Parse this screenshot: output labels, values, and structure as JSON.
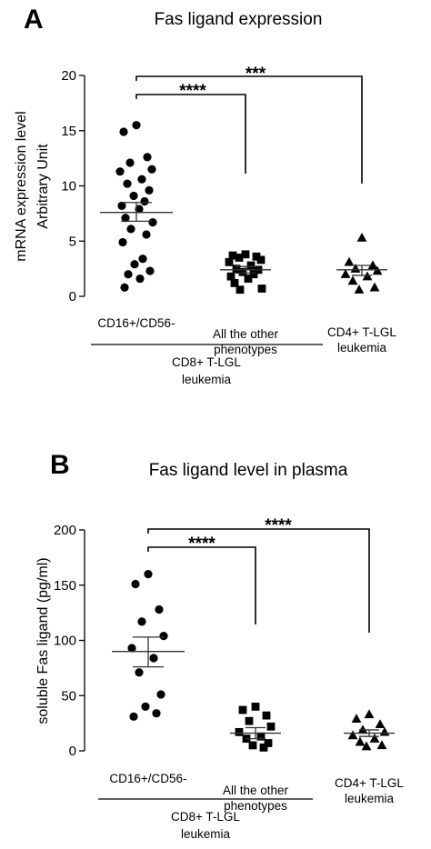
{
  "chart_data": [
    {
      "type": "scatter",
      "panel_label": "A",
      "title": "Fas ligand expression",
      "ylabel_line1": "mRNA expression level",
      "ylabel_line2": "Arbitrary Unit",
      "ylim": [
        0,
        20
      ],
      "yticks": [
        0,
        5,
        10,
        15,
        20
      ],
      "categories": [
        "CD16+/CD56-",
        "All the other phenotypes",
        "CD4+ T-LGL leukemia"
      ],
      "category_lines": [
        [
          "CD16+/CD56-"
        ],
        [
          "All the other",
          "phenotypes"
        ],
        [
          "CD4+ T-LGL",
          "leukemia"
        ]
      ],
      "group_label_lines": [
        "CD8+ T-LGL",
        "leukemia"
      ],
      "series": [
        {
          "marker": "circle",
          "mean": 7.6,
          "sem_low": 6.8,
          "sem_high": 8.5,
          "values": [
            15.5,
            14.9,
            12.6,
            12.1,
            11.5,
            11.3,
            10.6,
            10.2,
            9.6,
            9.1,
            8.6,
            8.2,
            7.9,
            7.1,
            6.7,
            6.1,
            5.6,
            4.9,
            3.4,
            2.9,
            2.3,
            2.0,
            1.6,
            0.8
          ]
        },
        {
          "marker": "square",
          "mean": 2.4,
          "sem_low": 2.1,
          "sem_high": 2.7,
          "values": [
            3.8,
            3.7,
            3.6,
            3.5,
            3.3,
            3.1,
            2.8,
            2.5,
            2.4,
            2.2,
            2.0,
            1.8,
            1.6,
            1.2,
            0.7,
            0.6
          ]
        },
        {
          "marker": "triangle",
          "mean": 2.4,
          "sem_low": 1.9,
          "sem_high": 2.8,
          "values": [
            5.3,
            3.1,
            2.8,
            2.5,
            2.3,
            2.0,
            1.8,
            1.4,
            0.8,
            0.6
          ]
        }
      ],
      "significance": [
        {
          "from": 0,
          "to": 1,
          "label": "****"
        },
        {
          "from": 0,
          "to": 2,
          "label": "***"
        }
      ]
    },
    {
      "type": "scatter",
      "panel_label": "B",
      "title": "Fas ligand level in plasma",
      "ylabel_line1": "soluble Fas ligand (pg/ml)",
      "ylabel_line2": "",
      "ylim": [
        0,
        200
      ],
      "yticks": [
        0,
        50,
        100,
        150,
        200
      ],
      "categories": [
        "CD16+/CD56-",
        "All the other phenotypes",
        "CD4+ T-LGL leukemia"
      ],
      "category_lines": [
        [
          "CD16+/CD56-"
        ],
        [
          "All the other",
          "phenotypes"
        ],
        [
          "CD4+ T-LGL",
          "leukemia"
        ]
      ],
      "group_label_lines": [
        "CD8+ T-LGL",
        "leukemia"
      ],
      "series": [
        {
          "marker": "circle",
          "mean": 90,
          "sem_low": 76,
          "sem_high": 103,
          "values": [
            160,
            151,
            128,
            117,
            104,
            93,
            84,
            71,
            51,
            40,
            34,
            31
          ]
        },
        {
          "marker": "square",
          "mean": 16,
          "sem_low": 11,
          "sem_high": 21,
          "values": [
            40,
            37,
            32,
            27,
            22,
            17,
            13,
            11,
            7,
            5,
            3
          ]
        },
        {
          "marker": "triangle",
          "mean": 16,
          "sem_low": 13,
          "sem_high": 19,
          "values": [
            33,
            29,
            24,
            19,
            17,
            14,
            11,
            8,
            5,
            4
          ]
        }
      ],
      "significance": [
        {
          "from": 0,
          "to": 1,
          "label": "****"
        },
        {
          "from": 0,
          "to": 2,
          "label": "****"
        }
      ]
    }
  ]
}
